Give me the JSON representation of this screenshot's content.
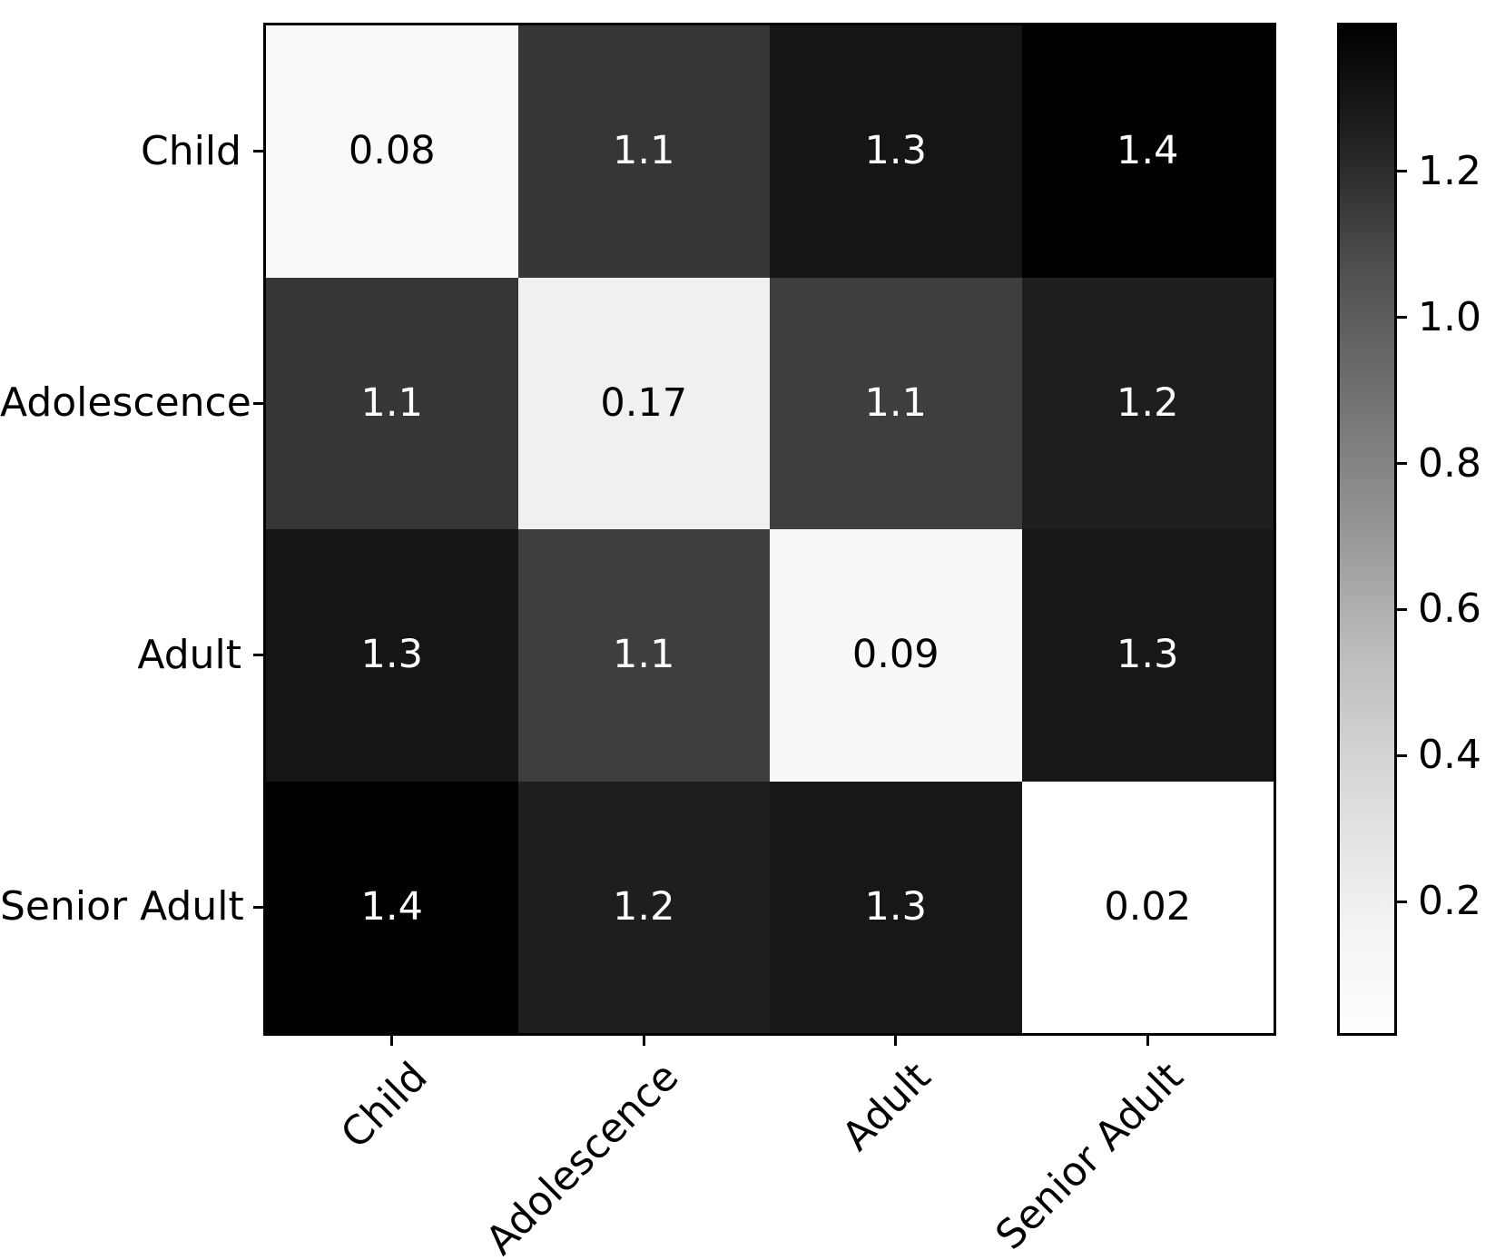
{
  "figure": {
    "background": "#ffffff",
    "spine_color": "#000000"
  },
  "chart_data": {
    "type": "heatmap",
    "title": "",
    "xlabel": "",
    "ylabel": "",
    "grid": false,
    "colormap": "Greys",
    "x_categories": [
      "Child",
      "Adolescence",
      "Adult",
      "Senior Adult"
    ],
    "y_categories": [
      "Child",
      "Adolescence",
      "Adult",
      "Senior Adult"
    ],
    "values": [
      [
        0.08,
        1.1,
        1.3,
        1.4
      ],
      [
        1.1,
        0.17,
        1.1,
        1.2
      ],
      [
        1.3,
        1.1,
        0.09,
        1.3
      ],
      [
        1.4,
        1.2,
        1.3,
        0.02
      ]
    ],
    "cell_labels": [
      [
        "0.08",
        "1.1",
        "1.3",
        "1.4"
      ],
      [
        "1.1",
        "0.17",
        "1.1",
        "1.2"
      ],
      [
        "1.3",
        "1.1",
        "0.09",
        "1.3"
      ],
      [
        "1.4",
        "1.2",
        "1.3",
        "0.02"
      ]
    ],
    "cell_colors": [
      [
        "#f9f9f9",
        "#363636",
        "#151515",
        "#010101"
      ],
      [
        "#363636",
        "#f0f0f0",
        "#3e3e3e",
        "#1e1e1e"
      ],
      [
        "#151515",
        "#3e3e3e",
        "#f8f8f8",
        "#171717"
      ],
      [
        "#010101",
        "#1e1e1e",
        "#171717",
        "#ffffff"
      ]
    ],
    "annotation_text_light": "#ffffff",
    "annotation_text_dark": "#000000",
    "colorbar": {
      "vmin": 0.02,
      "vmax": 1.4,
      "orientation": "vertical",
      "ticks": [
        {
          "value": 1.2,
          "label": "1.2"
        },
        {
          "value": 1.0,
          "label": "1.0"
        },
        {
          "value": 0.8,
          "label": "0.8"
        },
        {
          "value": 0.6,
          "label": "0.6"
        },
        {
          "value": 0.4,
          "label": "0.4"
        },
        {
          "value": 0.2,
          "label": "0.2"
        }
      ],
      "gradient_stops_bottom_to_top": [
        "#ffffff",
        "#f0f0f0",
        "#d9d9d9",
        "#bdbdbd",
        "#969696",
        "#737373",
        "#525252",
        "#252525",
        "#000000"
      ]
    }
  }
}
